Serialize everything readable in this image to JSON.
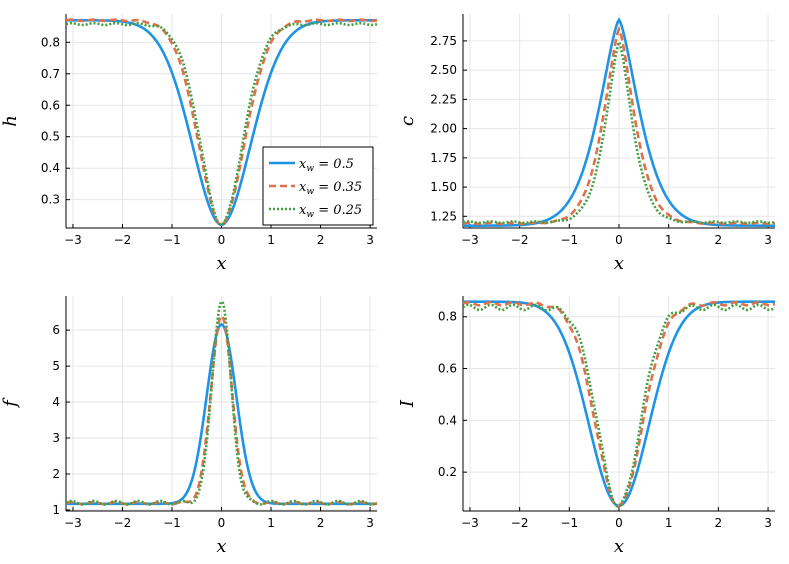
{
  "chart_data": [
    {
      "type": "line",
      "ylabel": "h",
      "xlabel": "x",
      "xlim": [
        -3.14,
        3.14
      ],
      "ylim": [
        0.21,
        0.89
      ],
      "xticks": [
        -3,
        -2,
        -1,
        0,
        1,
        2,
        3
      ],
      "yticks": [
        0.3,
        0.4,
        0.5,
        0.6,
        0.7,
        0.8
      ],
      "yticklabels": [
        "0.3",
        "0.4",
        "0.5",
        "0.6",
        "0.7",
        "0.8"
      ],
      "grid": true,
      "legend": {
        "position": "bottom-right",
        "entries": [
          {
            "prefix": "x",
            "sub": "w",
            "suffix": " = 0.5"
          },
          {
            "prefix": "x",
            "sub": "w",
            "suffix": " = 0.35"
          },
          {
            "prefix": "x",
            "sub": "w",
            "suffix": " = 0.25"
          }
        ]
      },
      "series": [
        {
          "style": "solid",
          "color": "#1f94e4",
          "params": {
            "base": 0.87,
            "min": 0.22,
            "w": 0.85,
            "p": 1.9,
            "ripple": 0
          }
        },
        {
          "style": "dash",
          "color": "#e0704c",
          "params": {
            "base": 0.87,
            "min": 0.22,
            "w": 0.66,
            "p": 1.9,
            "ripple": 0.002
          }
        },
        {
          "style": "dot",
          "color": "#40a040",
          "params": {
            "base": 0.858,
            "min": 0.22,
            "w": 0.6,
            "p": 1.9,
            "ripple": 0.003
          }
        }
      ]
    },
    {
      "type": "line",
      "ylabel": "c",
      "xlabel": "x",
      "xlim": [
        -3.14,
        3.14
      ],
      "ylim": [
        1.15,
        2.98
      ],
      "xticks": [
        -3,
        -2,
        -1,
        0,
        1,
        2,
        3
      ],
      "yticks": [
        1.25,
        1.5,
        1.75,
        2.0,
        2.25,
        2.5,
        2.75
      ],
      "yticklabels": [
        "1.25",
        "1.50",
        "1.75",
        "2.00",
        "2.25",
        "2.50",
        "2.75"
      ],
      "grid": true,
      "series": [
        {
          "style": "solid",
          "color": "#1f94e4",
          "params": {
            "base": 1.17,
            "min": 2.93,
            "w": 0.6,
            "p": 1.45,
            "ripple": 0
          }
        },
        {
          "style": "dash",
          "color": "#e0704c",
          "params": {
            "base": 1.19,
            "min": 2.85,
            "w": 0.45,
            "p": 1.45,
            "ripple": 0.004
          }
        },
        {
          "style": "dot",
          "color": "#40a040",
          "params": {
            "base": 1.2,
            "min": 2.74,
            "w": 0.39,
            "p": 1.45,
            "ripple": 0.006
          }
        }
      ]
    },
    {
      "type": "line",
      "ylabel": "f",
      "xlabel": "x",
      "xlim": [
        -3.14,
        3.14
      ],
      "ylim": [
        0.97,
        6.95
      ],
      "xticks": [
        -3,
        -2,
        -1,
        0,
        1,
        2,
        3
      ],
      "yticks": [
        1,
        2,
        3,
        4,
        5,
        6
      ],
      "yticklabels": [
        "1",
        "2",
        "3",
        "4",
        "5",
        "6"
      ],
      "grid": true,
      "series": [
        {
          "style": "solid",
          "color": "#1f94e4",
          "params": {
            "base": 1.17,
            "min": 6.16,
            "w": 0.42,
            "p": 2.0,
            "ripple": 0
          }
        },
        {
          "style": "dash",
          "color": "#e0704c",
          "params": {
            "base": 1.19,
            "min": 6.4,
            "w": 0.3,
            "p": 2.0,
            "ripple": 0.03
          }
        },
        {
          "style": "dot",
          "color": "#40a040",
          "params": {
            "base": 1.2,
            "min": 6.8,
            "w": 0.27,
            "p": 2.0,
            "ripple": 0.05
          }
        }
      ]
    },
    {
      "type": "line",
      "ylabel": "I",
      "xlabel": "x",
      "xlim": [
        -3.14,
        3.14
      ],
      "ylim": [
        0.05,
        0.88
      ],
      "xticks": [
        -3,
        -2,
        -1,
        0,
        1,
        2,
        3
      ],
      "yticks": [
        0.2,
        0.4,
        0.6,
        0.8
      ],
      "yticklabels": [
        "0.2",
        "0.4",
        "0.6",
        "0.8"
      ],
      "grid": true,
      "series": [
        {
          "style": "solid",
          "color": "#1f94e4",
          "params": {
            "base": 0.858,
            "min": 0.07,
            "w": 0.85,
            "p": 2.0,
            "ripple": 0
          }
        },
        {
          "style": "dash",
          "color": "#e0704c",
          "params": {
            "base": 0.85,
            "min": 0.07,
            "w": 0.66,
            "p": 2.0,
            "ripple": 0.006
          }
        },
        {
          "style": "dot",
          "color": "#40a040",
          "params": {
            "base": 0.836,
            "min": 0.07,
            "w": 0.59,
            "p": 2.0,
            "ripple": 0.01
          }
        }
      ]
    }
  ]
}
